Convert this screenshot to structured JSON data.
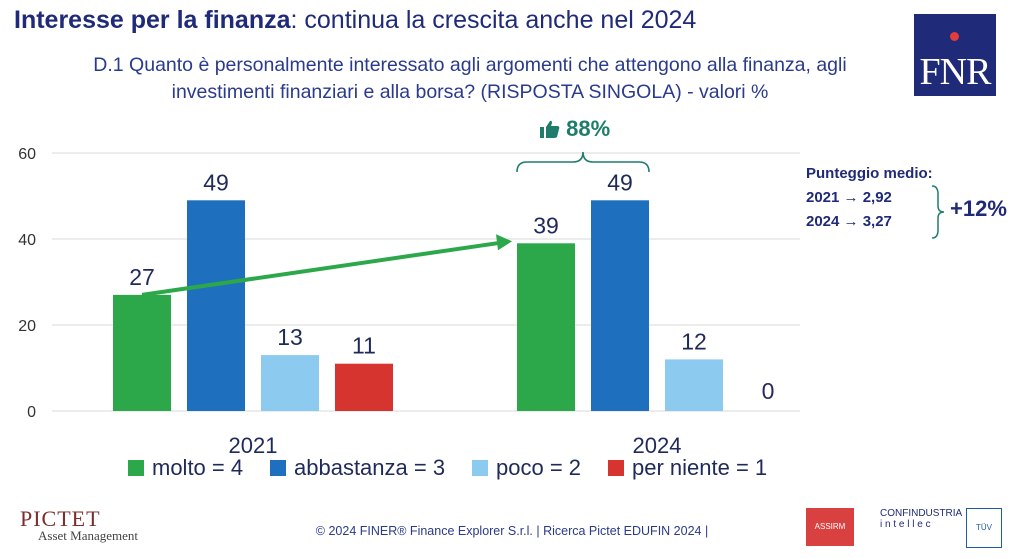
{
  "header": {
    "title_bold": "Interesse per la finanza",
    "title_rest": ": continua la crescita anche nel 2024",
    "question": "D.1 Quanto è personalmente interessato agli argomenti che attengono alla finanza, agli investimenti finanziari e alla borsa? (RISPOSTA SINGOLA) - valori %",
    "logo": "FNR"
  },
  "callout": {
    "icon": "thumbs-up-icon",
    "value": "88%"
  },
  "average": {
    "title": "Punteggio medio:",
    "line_2021": "2021 → 2,92",
    "line_2024": "2024 → 3,27",
    "delta": "+12%"
  },
  "colors": {
    "molto": "#2ca84a",
    "abbastanza": "#1f6fbf",
    "poco": "#8ccaf0",
    "per_niente": "#d6352f",
    "arrow": "#2ca84a",
    "brace": "#1e7d6a"
  },
  "chart_data": {
    "type": "bar",
    "categories": [
      "2021",
      "2024"
    ],
    "series": [
      {
        "name": "molto = 4",
        "values": [
          27,
          39
        ]
      },
      {
        "name": "abbastanza = 3",
        "values": [
          49,
          49
        ]
      },
      {
        "name": "poco = 2",
        "values": [
          13,
          12
        ]
      },
      {
        "name": "per niente = 1",
        "values": [
          11,
          0
        ]
      }
    ],
    "ylim": [
      0,
      60
    ],
    "yticks": [
      0,
      20,
      40,
      60
    ],
    "grid": true,
    "legend": "bottom"
  },
  "footer": {
    "copyright": "© 2024 FINER® Finance Explorer S.r.l. | Ricerca Pictet EDUFIN 2024 |",
    "pictet_name": "PICTET",
    "pictet_sub": "Asset Management",
    "assirm": "ASSIRM",
    "confindustria": "CONFINDUSTRIA",
    "confindustria_sub": "i n t e l l e c",
    "tuv": "TÜV"
  }
}
